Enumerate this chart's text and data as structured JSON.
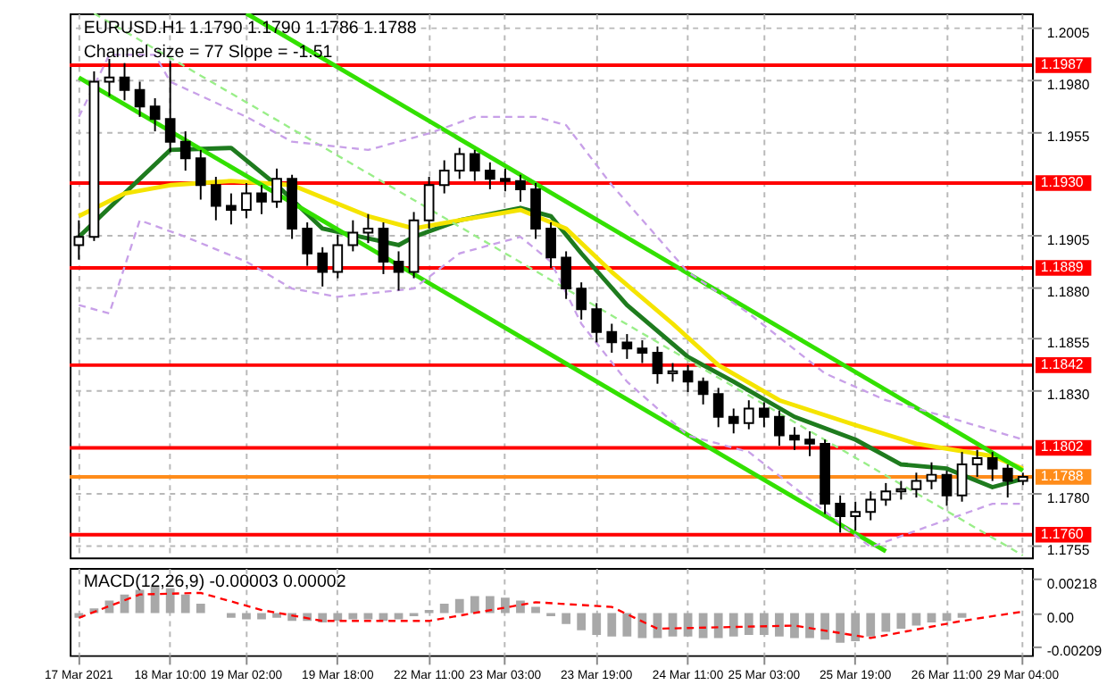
{
  "chart_data": [
    {
      "type": "candlestick",
      "title": "EURUSD.H1  1.1790 1.1790 1.1786 1.1788",
      "subtitle": "Channel size = 77 Slope = -1.51",
      "color": "#000000",
      "categories": [
        null,
        null,
        null,
        null,
        null,
        null,
        null,
        null,
        null,
        null,
        null,
        null,
        null,
        null,
        null,
        null,
        null,
        null,
        null,
        null,
        null,
        null,
        null,
        null,
        null,
        null,
        null,
        null,
        null,
        null,
        null,
        null,
        null,
        null,
        null,
        null,
        null,
        null,
        null,
        null,
        null,
        null,
        null,
        null,
        null,
        null,
        null,
        null,
        null,
        null,
        null,
        null,
        null,
        null,
        null,
        null,
        null,
        null,
        null,
        null,
        null,
        null,
        null
      ],
      "ohlc": [
        [
          1.19,
          1.1912,
          1.1893,
          1.1904
        ],
        [
          1.1904,
          1.1984,
          1.1902,
          1.1979
        ],
        [
          1.1979,
          1.199,
          1.1972,
          1.1981
        ],
        [
          1.1981,
          1.1988,
          1.197,
          1.1975
        ],
        [
          1.1975,
          1.1979,
          1.1962,
          1.1967
        ],
        [
          1.1967,
          1.1971,
          1.1955,
          1.1961
        ],
        [
          1.1961,
          1.1989,
          1.1945,
          1.195
        ],
        [
          1.195,
          1.1955,
          1.1936,
          1.1942
        ],
        [
          1.1942,
          1.1946,
          1.1922,
          1.1929
        ],
        [
          1.1929,
          1.1933,
          1.1912,
          1.1919
        ],
        [
          1.1919,
          1.1925,
          1.191,
          1.1917
        ],
        [
          1.1917,
          1.193,
          1.1913,
          1.1925
        ],
        [
          1.1925,
          1.1929,
          1.1915,
          1.1921
        ],
        [
          1.1921,
          1.1937,
          1.1918,
          1.1932
        ],
        [
          1.1932,
          1.1934,
          1.1903,
          1.1908
        ],
        [
          1.1908,
          1.1911,
          1.189,
          1.1896
        ],
        [
          1.1896,
          1.1899,
          1.188,
          1.1887
        ],
        [
          1.1887,
          1.1905,
          1.1884,
          1.19
        ],
        [
          1.19,
          1.1912,
          1.1897,
          1.1906
        ],
        [
          1.1906,
          1.1915,
          1.1901,
          1.1908
        ],
        [
          1.1908,
          1.1911,
          1.1886,
          1.1892
        ],
        [
          1.1892,
          1.1897,
          1.1878,
          1.1887
        ],
        [
          1.1887,
          1.1916,
          1.1884,
          1.1912
        ],
        [
          1.1912,
          1.1933,
          1.1908,
          1.1929
        ],
        [
          1.1929,
          1.1941,
          1.1925,
          1.1936
        ],
        [
          1.1936,
          1.1947,
          1.1932,
          1.1944
        ],
        [
          1.1944,
          1.1946,
          1.1931,
          1.1936
        ],
        [
          1.1936,
          1.194,
          1.1927,
          1.1932
        ],
        [
          1.1932,
          1.1937,
          1.1926,
          1.1931
        ],
        [
          1.1931,
          1.1934,
          1.1921,
          1.1927
        ],
        [
          1.1927,
          1.193,
          1.1903,
          1.1908
        ],
        [
          1.1908,
          1.1911,
          1.1889,
          1.1894
        ],
        [
          1.1894,
          1.1897,
          1.1874,
          1.1879
        ],
        [
          1.1879,
          1.1882,
          1.1864,
          1.1869
        ],
        [
          1.1869,
          1.1872,
          1.1853,
          1.1858
        ],
        [
          1.1858,
          1.1862,
          1.1848,
          1.1853
        ],
        [
          1.1853,
          1.1857,
          1.1845,
          1.185
        ],
        [
          1.185,
          1.1854,
          1.1843,
          1.1848
        ],
        [
          1.1848,
          1.1851,
          1.1833,
          1.1838
        ],
        [
          1.1838,
          1.1843,
          1.1834,
          1.1839
        ],
        [
          1.1839,
          1.1842,
          1.1829,
          1.1834
        ],
        [
          1.1834,
          1.1836,
          1.1823,
          1.1828
        ],
        [
          1.1828,
          1.1831,
          1.1812,
          1.1817
        ],
        [
          1.1817,
          1.1821,
          1.1809,
          1.1814
        ],
        [
          1.1814,
          1.1825,
          1.1811,
          1.1821
        ],
        [
          1.1821,
          1.1824,
          1.1812,
          1.1817
        ],
        [
          1.1817,
          1.182,
          1.1803,
          1.1808
        ],
        [
          1.1808,
          1.1812,
          1.1801,
          1.1806
        ],
        [
          1.1806,
          1.181,
          1.1798,
          1.1804
        ],
        [
          1.1804,
          1.1806,
          1.177,
          1.1775
        ],
        [
          1.1775,
          1.1779,
          1.1761,
          1.1769
        ],
        [
          1.1769,
          1.1776,
          1.1762,
          1.1771
        ],
        [
          1.1771,
          1.1781,
          1.1767,
          1.1777
        ],
        [
          1.1777,
          1.1785,
          1.1774,
          1.1781
        ],
        [
          1.1781,
          1.1786,
          1.1777,
          1.1782
        ],
        [
          1.1782,
          1.179,
          1.1778,
          1.1786
        ],
        [
          1.1786,
          1.1795,
          1.1782,
          1.1789
        ],
        [
          1.1789,
          1.1791,
          1.1774,
          1.1779
        ],
        [
          1.1779,
          1.18,
          1.1776,
          1.1794
        ],
        [
          1.1794,
          1.1801,
          1.1788,
          1.1797
        ],
        [
          1.1797,
          1.18,
          1.1786,
          1.1792
        ],
        [
          1.1792,
          1.1794,
          1.1778,
          1.1786
        ],
        [
          1.1786,
          1.179,
          1.1784,
          1.1788
        ]
      ],
      "series": [
        {
          "type": "line",
          "color": "#1e7b1e",
          "line_style": "solid",
          "values": [
            1.1904,
            null,
            null,
            1.1925,
            null,
            null,
            1.1946,
            null,
            null,
            null,
            1.1947,
            null,
            null,
            1.1929,
            null,
            null,
            1.1908,
            null,
            null,
            null,
            null,
            1.19,
            1.1904,
            null,
            null,
            1.1912,
            null,
            null,
            null,
            1.1918,
            null,
            1.1914,
            null,
            1.1896,
            null,
            null,
            1.1871,
            null,
            null,
            null,
            1.1846,
            null,
            null,
            1.1834,
            null,
            null,
            null,
            1.1817,
            null,
            null,
            null,
            1.1806,
            null,
            null,
            1.1794,
            null,
            null,
            1.1792,
            null,
            null,
            1.1783,
            null,
            1.1787
          ]
        },
        {
          "type": "line",
          "color": "#f5e400",
          "line_style": "solid",
          "values": [
            1.1914,
            null,
            null,
            1.1925,
            null,
            null,
            1.1929,
            null,
            null,
            null,
            1.1931,
            null,
            null,
            null,
            1.1929,
            null,
            null,
            null,
            null,
            1.1914,
            null,
            null,
            1.1908,
            null,
            null,
            1.1912,
            null,
            null,
            null,
            1.1917,
            null,
            null,
            1.1908,
            null,
            null,
            1.1887,
            null,
            null,
            null,
            1.1862,
            null,
            null,
            1.1842,
            null,
            null,
            null,
            1.1825,
            null,
            null,
            null,
            null,
            1.1813,
            null,
            null,
            null,
            1.1804,
            null,
            null,
            null,
            null,
            1.1798,
            null,
            1.1792
          ]
        },
        {
          "type": "line",
          "color": "#33e000",
          "line_style": "solid",
          "values": [
            null,
            null,
            null,
            null,
            null,
            null,
            null,
            null,
            null,
            null,
            null,
            1.2012,
            null,
            null,
            null,
            null,
            null,
            null,
            null,
            null,
            null,
            null,
            null,
            null,
            null,
            null,
            null,
            null,
            null,
            null,
            null,
            null,
            null,
            null,
            null,
            null,
            null,
            null,
            null,
            null,
            null,
            null,
            null,
            null,
            null,
            null,
            null,
            null,
            null,
            null,
            null,
            null,
            null,
            null,
            null,
            null,
            null,
            null,
            null,
            null,
            null,
            null,
            1.1791
          ]
        },
        {
          "type": "line",
          "color": "#33e000",
          "line_style": "solid",
          "values": [
            1.1981,
            null,
            null,
            null,
            null,
            null,
            null,
            null,
            null,
            null,
            null,
            null,
            null,
            null,
            null,
            null,
            null,
            null,
            null,
            null,
            null,
            null,
            null,
            null,
            null,
            null,
            null,
            null,
            null,
            null,
            null,
            null,
            null,
            null,
            null,
            null,
            null,
            null,
            null,
            null,
            null,
            null,
            null,
            null,
            null,
            null,
            null,
            null,
            null,
            null,
            null,
            null,
            null,
            1.1752,
            null,
            null,
            null,
            null,
            null,
            null,
            null,
            null,
            null
          ]
        },
        {
          "type": "line",
          "color": "#99ee88",
          "line_style": "dashed",
          "values": [
            null,
            1.2012,
            null,
            null,
            null,
            null,
            null,
            null,
            null,
            null,
            null,
            null,
            null,
            null,
            null,
            null,
            null,
            null,
            null,
            null,
            null,
            null,
            null,
            null,
            null,
            null,
            null,
            null,
            null,
            null,
            null,
            null,
            null,
            null,
            null,
            null,
            null,
            null,
            null,
            null,
            null,
            null,
            null,
            null,
            null,
            null,
            null,
            null,
            null,
            null,
            null,
            null,
            null,
            null,
            null,
            null,
            null,
            null,
            null,
            null,
            null,
            null,
            1.175
          ]
        },
        {
          "type": "line",
          "color": "#c8a0e8",
          "line_style": "dashed",
          "values": [
            1.1962,
            null,
            1.1992,
            null,
            null,
            1.1992,
            1.1979,
            null,
            null,
            null,
            null,
            1.1962,
            null,
            null,
            1.195,
            null,
            null,
            null,
            null,
            1.1946,
            null,
            null,
            null,
            1.1954,
            null,
            null,
            1.1962,
            null,
            null,
            null,
            1.1962,
            null,
            1.1958,
            null,
            null,
            1.1929,
            null,
            null,
            null,
            null,
            1.1887,
            null,
            null,
            null,
            1.1867,
            null,
            null,
            null,
            null,
            1.1838,
            null,
            null,
            null,
            1.1825,
            null,
            null,
            null,
            1.1817,
            null,
            null,
            null,
            null,
            1.1806
          ]
        },
        {
          "type": "line",
          "color": "#c8a0e8",
          "line_style": "dashed",
          "values": [
            1.1871,
            null,
            1.1867,
            null,
            1.1912,
            null,
            null,
            1.1904,
            null,
            null,
            null,
            1.1892,
            null,
            null,
            1.1879,
            null,
            null,
            1.1875,
            null,
            null,
            null,
            null,
            1.1879,
            null,
            null,
            1.1896,
            null,
            null,
            null,
            1.1904,
            null,
            1.1892,
            null,
            1.1862,
            null,
            null,
            1.1834,
            null,
            null,
            null,
            1.1808,
            null,
            null,
            null,
            1.18,
            null,
            null,
            null,
            null,
            null,
            null,
            null,
            1.1754,
            null,
            null,
            1.1762,
            null,
            null,
            null,
            null,
            1.1775,
            null,
            1.1775
          ]
        }
      ],
      "ref_lines": [
        {
          "axis": "y",
          "value": 1.1987,
          "label": "1.1987",
          "color": "#ff0000"
        },
        {
          "axis": "y",
          "value": 1.193,
          "label": "1.1930",
          "color": "#ff0000"
        },
        {
          "axis": "y",
          "value": 1.1889,
          "label": "1.1889",
          "color": "#ff0000"
        },
        {
          "axis": "y",
          "value": 1.1842,
          "label": "1.1842",
          "color": "#ff0000"
        },
        {
          "axis": "y",
          "value": 1.1802,
          "label": "1.1802",
          "color": "#ff0000"
        },
        {
          "axis": "y",
          "value": 1.1788,
          "label": "1.1788",
          "color": "#ff8c1a"
        },
        {
          "axis": "y",
          "value": 1.176,
          "label": "1.1760",
          "color": "#ff0000"
        }
      ],
      "ylim": [
        1.1749,
        1.2012
      ],
      "yticks": [
        1.2005,
        {
          "value": 1.198,
          "label": "1.1980"
        },
        1.1955,
        1.1905,
        {
          "value": 1.188,
          "label": "1.1880"
        },
        1.1855,
        {
          "value": 1.183,
          "label": "1.1830"
        },
        {
          "value": 1.178,
          "label": "1.1780"
        },
        1.1755
      ],
      "grid": true,
      "tick_labels": "y"
    },
    {
      "type": "bar",
      "title": "MACD(12,26,9) -0.00003 0.00002",
      "categories": [
        "17 Mar 2021",
        null,
        null,
        null,
        null,
        null,
        "18 Mar 10:00",
        null,
        null,
        null,
        null,
        "19 Mar 02:00",
        null,
        null,
        null,
        null,
        null,
        "19 Mar 18:00",
        null,
        null,
        null,
        null,
        null,
        "22 Mar 11:00",
        null,
        null,
        null,
        null,
        "23 Mar 03:00",
        null,
        null,
        null,
        null,
        null,
        "23 Mar 19:00",
        null,
        null,
        null,
        null,
        null,
        "24 Mar 11:00",
        null,
        null,
        null,
        null,
        "25 Mar 03:00",
        null,
        null,
        null,
        null,
        null,
        "25 Mar 19:00",
        null,
        null,
        null,
        null,
        null,
        "26 Mar 11:00",
        null,
        null,
        null,
        null,
        "29 Mar 04:00"
      ],
      "series": [
        {
          "type": "bar",
          "color": "#a8a8a8",
          "values": [
            -0.0003,
            0.0003,
            0.0008,
            0.0012,
            0.0015,
            0.0017,
            0.0016,
            0.0012,
            0.0006,
            null,
            -0.0003,
            -0.0004,
            -0.0004,
            -0.0003,
            -0.0005,
            -0.0005,
            -0.0006,
            -0.0005,
            -0.0004,
            -0.0004,
            -0.0005,
            -0.0004,
            -0.0002,
            0.0002,
            0.0006,
            0.0009,
            0.0011,
            0.0011,
            0.001,
            0.0008,
            0.0004,
            -0.0002,
            -0.0007,
            -0.0011,
            -0.0014,
            -0.0015,
            -0.0015,
            -0.0016,
            -0.0016,
            -0.0015,
            -0.0015,
            -0.0016,
            -0.0016,
            -0.0015,
            -0.0014,
            -0.0014,
            -0.0015,
            -0.0016,
            -0.0016,
            -0.0017,
            -0.0019,
            -0.0018,
            -0.0015,
            -0.0012,
            -0.001,
            -0.0008,
            -0.0006,
            -0.0005,
            -0.0003,
            null,
            0.0,
            null,
            null
          ]
        },
        {
          "type": "line",
          "color": "#ff0000",
          "line_style": "dashed",
          "values": [
            -0.0003,
            null,
            null,
            null,
            0.0012,
            null,
            null,
            null,
            0.0013,
            null,
            null,
            null,
            0.0002,
            null,
            null,
            null,
            -0.0005,
            null,
            null,
            null,
            null,
            null,
            null,
            -0.0005,
            null,
            null,
            null,
            null,
            null,
            null,
            0.0007,
            null,
            null,
            null,
            null,
            0.0004,
            null,
            null,
            -0.001,
            null,
            null,
            null,
            null,
            null,
            null,
            null,
            null,
            -0.0008,
            null,
            null,
            null,
            null,
            -0.0016,
            null,
            null,
            null,
            null,
            null,
            -0.0005,
            null,
            null,
            null,
            0.0001
          ]
        }
      ],
      "ylim": [
        -0.0027,
        0.0029
      ],
      "yticks": [
        0.00218,
        {
          "value": 0,
          "label": "0.00"
        },
        -0.00209
      ],
      "grid": "x"
    }
  ]
}
